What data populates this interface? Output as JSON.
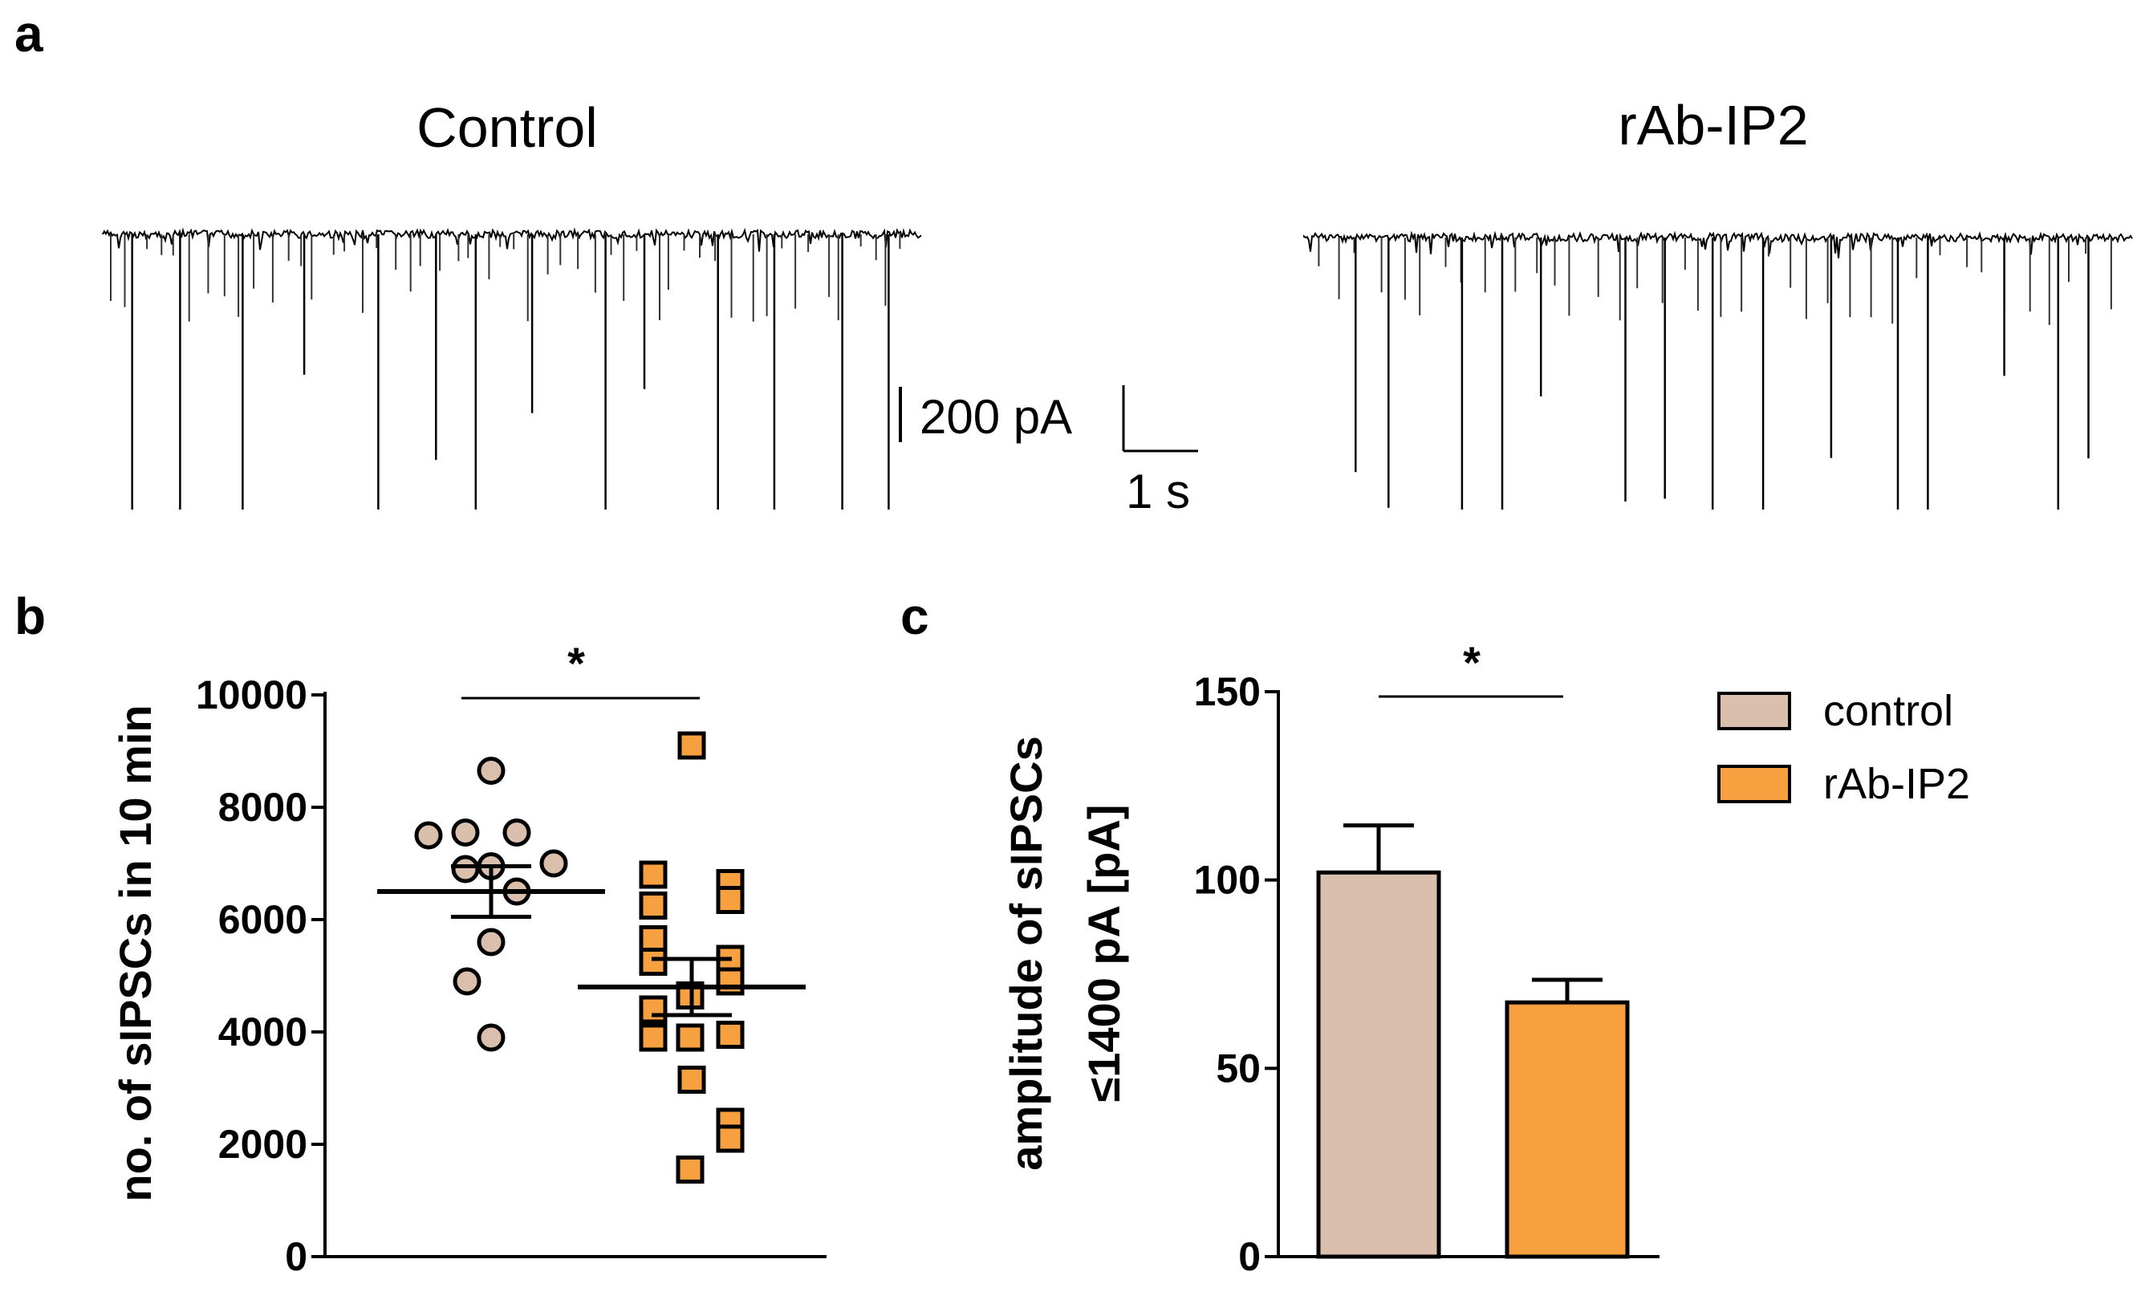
{
  "panel_a": {
    "letter": "a",
    "traces": [
      {
        "title": "Control",
        "event_count": 52,
        "large_events": 14
      },
      {
        "title": "rAb-IP2",
        "event_count": 38,
        "large_events": 15
      }
    ],
    "scale_bar": {
      "y_label": "200 pA",
      "x_label": "1 s"
    }
  },
  "panel_b": {
    "letter": "b"
  },
  "panel_c": {
    "letter": "c"
  },
  "colors": {
    "control": "#d9bfac",
    "rab_ip2": "#f7a03f",
    "line": "#000000"
  },
  "chart_data": [
    {
      "type": "scatter",
      "panel": "b",
      "ylabel": "no. of sIPSCs in 10 min",
      "ylim": [
        0,
        10000
      ],
      "yticks": [
        0,
        2000,
        4000,
        6000,
        8000,
        10000
      ],
      "significance": "*",
      "series": [
        {
          "name": "control",
          "marker": "circle",
          "values": [
            8650,
            7550,
            7550,
            7500,
            7000,
            6950,
            6900,
            6500,
            5600,
            4900,
            3900
          ],
          "mean": 6500,
          "sem": 450
        },
        {
          "name": "rAb-IP2",
          "marker": "square",
          "values": [
            9100,
            6800,
            6650,
            6350,
            6250,
            5650,
            5300,
            5250,
            4900,
            4650,
            4400,
            3950,
            3900,
            3900,
            3150,
            2400,
            2100,
            1550
          ],
          "mean": 4800,
          "sem": 500
        }
      ]
    },
    {
      "type": "bar",
      "panel": "c",
      "ylabel": "amplitude of sIPSCs",
      "ylabel2": "≤1400 pA [pA]",
      "ylim": [
        0,
        150
      ],
      "yticks": [
        0,
        50,
        100,
        150
      ],
      "significance": "*",
      "categories": [
        "control",
        "rAb-IP2"
      ],
      "values": [
        102,
        67.5
      ],
      "errors": [
        12.5,
        6
      ],
      "legend": [
        "control",
        "rAb-IP2"
      ]
    }
  ]
}
